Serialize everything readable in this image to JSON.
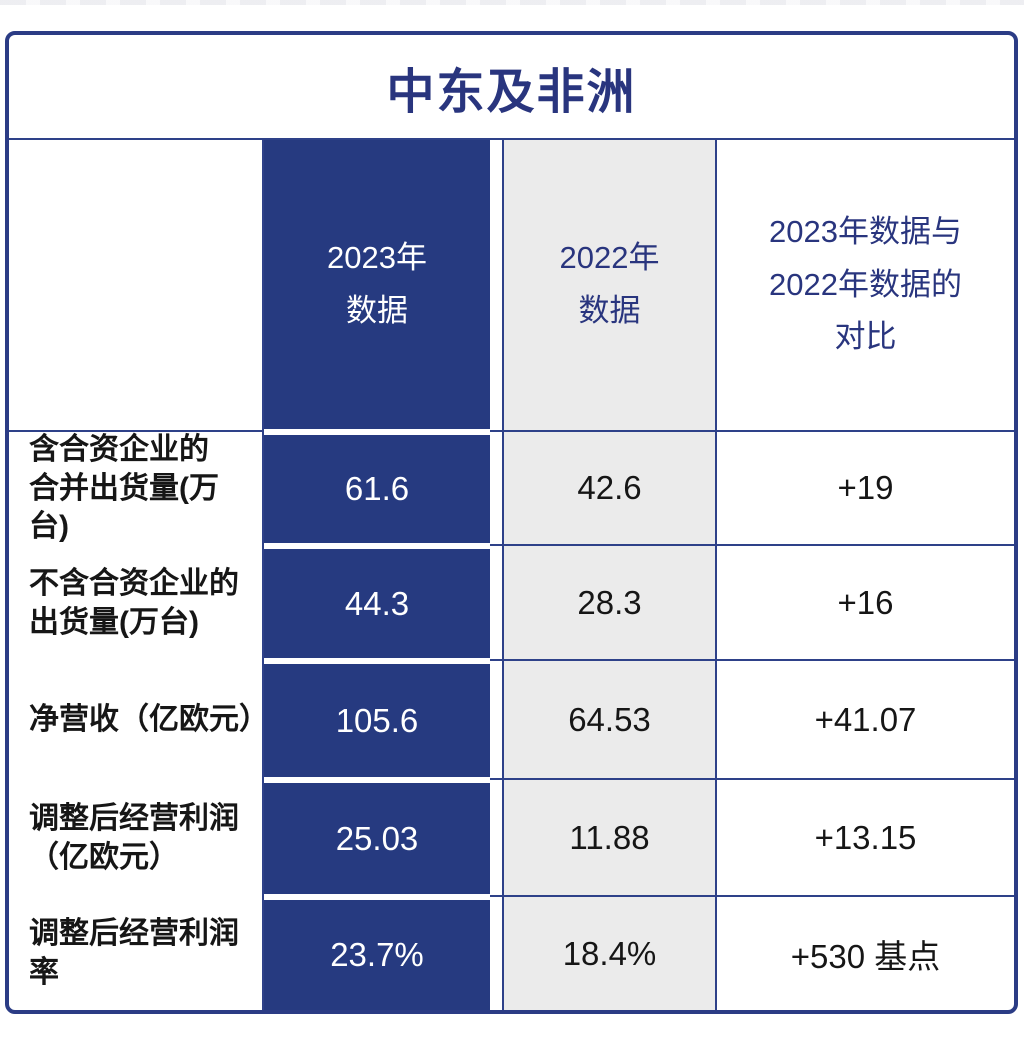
{
  "title": "中东及非洲",
  "header": {
    "col_label": "",
    "col_2023": "2023年\n数据",
    "col_2022": "2022年\n数据",
    "col_compare": "2023年数据与\n2022年数据的\n对比"
  },
  "rows": [
    {
      "label": "含合资企业的\n合并出货量(万台)",
      "v2023": "61.6",
      "v2022": "42.6",
      "compare": "+19"
    },
    {
      "label": "不含合资企业的\n出货量(万台)",
      "v2023": "44.3",
      "v2022": "28.3",
      "compare": "+16"
    },
    {
      "label": "净营收（亿欧元）",
      "v2023": "105.6",
      "v2022": "64.53",
      "compare": "+41.07"
    },
    {
      "label": "调整后经营利润\n（亿欧元）",
      "v2023": "25.03",
      "v2022": "11.88",
      "compare": "+13.15"
    },
    {
      "label": "调整后经营利润率",
      "v2023": "23.7%",
      "v2022": "18.4%",
      "compare": "+530 基点"
    }
  ],
  "colors": {
    "primary_blue_fill": "#263a80",
    "blue_text": "#29357e",
    "grid_line_blue": "#2e4189",
    "light_gray_fill": "#ebebeb",
    "body_text": "#161616",
    "value_on_blue": "#ffffff"
  },
  "chart_data": {
    "type": "table",
    "title": "中东及非洲",
    "columns": [
      "",
      "2023年数据",
      "2022年数据",
      "2023年数据与2022年数据的对比"
    ],
    "rows": [
      [
        "含合资企业的合并出货量(万台)",
        61.6,
        42.6,
        "+19"
      ],
      [
        "不含合资企业的出货量(万台)",
        44.3,
        28.3,
        "+16"
      ],
      [
        "净营收（亿欧元）",
        105.6,
        64.53,
        "+41.07"
      ],
      [
        "调整后经营利润（亿欧元）",
        25.03,
        11.88,
        "+13.15"
      ],
      [
        "调整后经营利润率",
        "23.7%",
        "18.4%",
        "+530 基点"
      ]
    ],
    "layout_hints": {
      "highlight_column": "2023年数据",
      "highlight_style": "dark-blue fill, white text",
      "secondary_column_style": "light-gray fill",
      "grid": "on"
    }
  }
}
